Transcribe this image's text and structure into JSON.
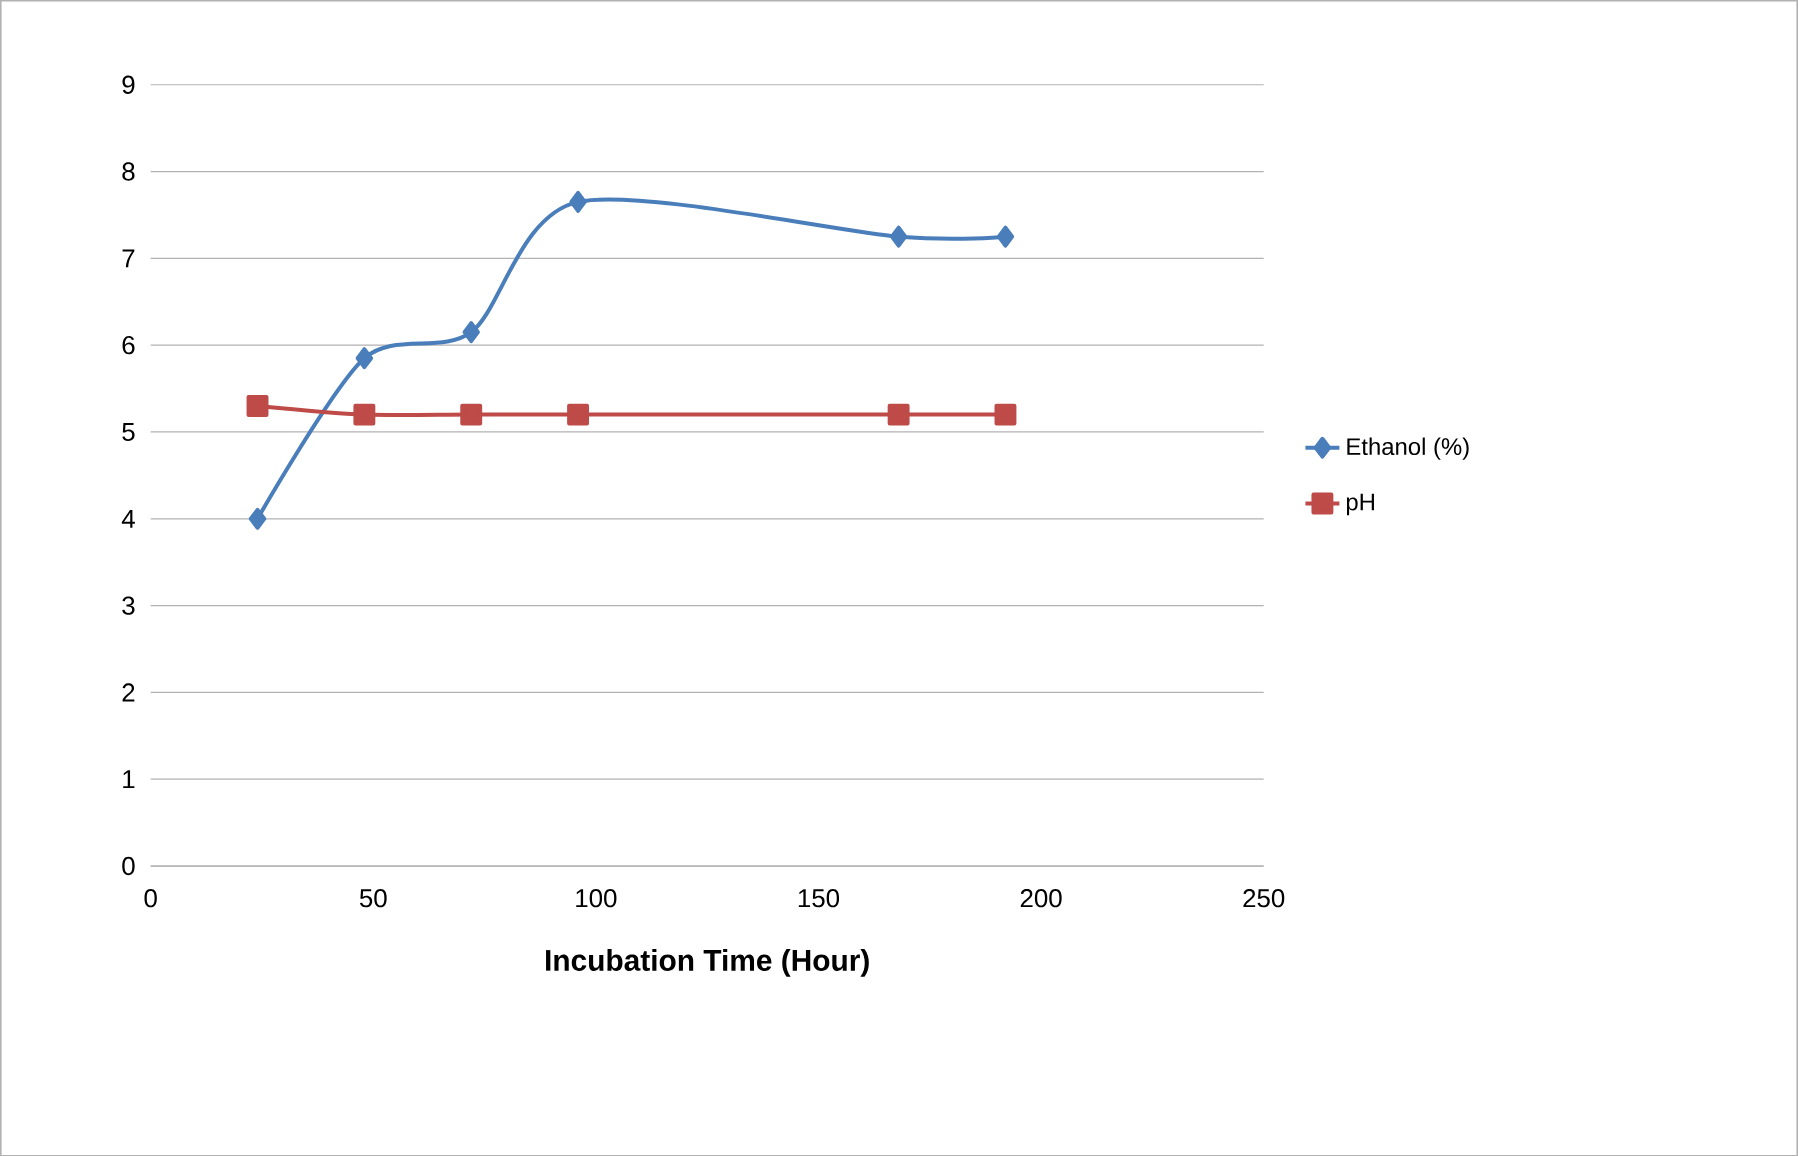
{
  "chart_data": {
    "type": "line",
    "xlabel": "Incubation Time (Hour)",
    "x": [
      24,
      48,
      72,
      96,
      168,
      192
    ],
    "series": [
      {
        "name": "Ethanol  (%)",
        "color": "#4a7ebb",
        "marker": "diamond",
        "values": [
          4.0,
          5.85,
          6.15,
          7.65,
          7.25,
          7.25
        ]
      },
      {
        "name": "pH",
        "color": "#be4b48",
        "marker": "square",
        "values": [
          5.3,
          5.2,
          5.2,
          5.2,
          5.2,
          5.2
        ]
      }
    ],
    "xlim": [
      0,
      250
    ],
    "xticks": [
      0,
      50,
      100,
      150,
      200,
      250
    ],
    "ylim": [
      0,
      9
    ],
    "yticks": [
      0,
      1,
      2,
      3,
      4,
      5,
      6,
      7,
      8,
      9
    ],
    "grid": "y",
    "legend": "right"
  }
}
